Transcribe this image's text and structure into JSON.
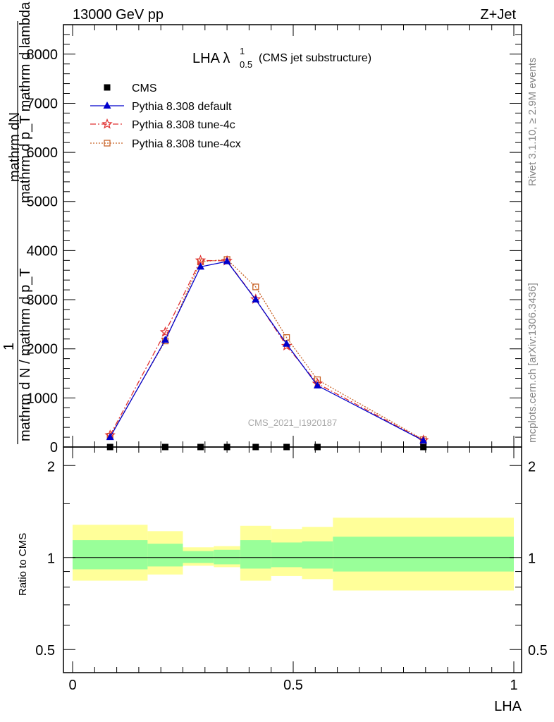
{
  "header": {
    "energy": "13000 GeV pp",
    "process": "Z+Jet"
  },
  "side_text": {
    "rivet": "Rivet 3.1.10, ≥ 2.9M events",
    "mcplots": "mcplots.cern.ch [arXiv:1306.3436]"
  },
  "watermark": "CMS_2021_I1920187",
  "colors": {
    "cms": "#000000",
    "default": "#0000cc",
    "tune4c": "#e03030",
    "tune4cx": "#c86428",
    "band_inner": "#99ff99",
    "band_outer": "#ffff99"
  },
  "chart_data": [
    {
      "type": "line",
      "title_main": "LHA λ",
      "title_sup": "1",
      "title_sub": "0.5",
      "title_suffix": "(CMS jet substructure)",
      "ylabel_top": "mathrm dN",
      "ylabel_top2": "mathrm d p_T mathrm d lambda",
      "ylabel_num": "1",
      "ylabel_den": "mathrm d N / mathrm d p_T",
      "xlim": [
        0,
        1
      ],
      "ylim": [
        0,
        8600
      ],
      "yticks": [
        0,
        1000,
        2000,
        3000,
        4000,
        5000,
        6000,
        7000,
        8000
      ],
      "ytick_labels": [
        "0",
        "1000",
        "2000",
        "3000",
        "4000",
        "5000",
        "6000",
        "7000",
        "8000"
      ],
      "legend_position": "top-left",
      "series": [
        {
          "key": "cms",
          "name": "CMS",
          "marker": "square",
          "x": [
            0.085,
            0.21,
            0.29,
            0.35,
            0.415,
            0.485,
            0.555,
            0.795
          ],
          "y": [
            0,
            0,
            0,
            0,
            0,
            0,
            0,
            0
          ]
        },
        {
          "key": "default",
          "name": "Pythia 8.308 default",
          "marker": "triangle",
          "dash": "",
          "x": [
            0.085,
            0.21,
            0.29,
            0.35,
            0.415,
            0.485,
            0.555,
            0.795
          ],
          "y": [
            200,
            2180,
            3670,
            3780,
            3000,
            2100,
            1250,
            130
          ]
        },
        {
          "key": "tune4c",
          "name": "Pythia 8.308 tune-4c",
          "marker": "star",
          "dash": "8,3,2,3",
          "x": [
            0.085,
            0.21,
            0.29,
            0.35,
            0.415,
            0.485,
            0.555,
            0.795
          ],
          "y": [
            240,
            2340,
            3800,
            3790,
            3010,
            2060,
            1290,
            140
          ]
        },
        {
          "key": "tune4cx",
          "name": "Pythia 8.308 tune-4cx",
          "marker": "open-square",
          "dash": "2,2",
          "x": [
            0.085,
            0.21,
            0.29,
            0.35,
            0.415,
            0.485,
            0.555,
            0.795
          ],
          "y": [
            220,
            2160,
            3770,
            3820,
            3260,
            2230,
            1370,
            150
          ]
        }
      ]
    },
    {
      "type": "area",
      "ylabel": "Ratio to CMS",
      "xlabel": "LHA",
      "xlim": [
        0,
        1
      ],
      "ylim": [
        0.42,
        2.3
      ],
      "ylog": true,
      "yticks": [
        0.5,
        1,
        2
      ],
      "ytick_labels": [
        "0.5",
        "1",
        "2"
      ],
      "xticks": [
        0,
        0.5,
        1
      ],
      "xtick_labels": [
        "0",
        "0.5",
        "1"
      ],
      "bins": [
        {
          "lo": 0.0,
          "hi": 0.17,
          "inner": [
            0.915,
            1.14
          ],
          "outer": [
            0.84,
            1.28
          ]
        },
        {
          "lo": 0.17,
          "hi": 0.25,
          "inner": [
            0.935,
            1.11
          ],
          "outer": [
            0.88,
            1.22
          ]
        },
        {
          "lo": 0.25,
          "hi": 0.32,
          "inner": [
            0.96,
            1.05
          ],
          "outer": [
            0.94,
            1.08
          ]
        },
        {
          "lo": 0.32,
          "hi": 0.38,
          "inner": [
            0.95,
            1.06
          ],
          "outer": [
            0.93,
            1.09
          ]
        },
        {
          "lo": 0.38,
          "hi": 0.45,
          "inner": [
            0.92,
            1.14
          ],
          "outer": [
            0.84,
            1.27
          ]
        },
        {
          "lo": 0.45,
          "hi": 0.52,
          "inner": [
            0.93,
            1.12
          ],
          "outer": [
            0.87,
            1.24
          ]
        },
        {
          "lo": 0.52,
          "hi": 0.59,
          "inner": [
            0.92,
            1.13
          ],
          "outer": [
            0.85,
            1.26
          ]
        },
        {
          "lo": 0.59,
          "hi": 1.0,
          "inner": [
            0.9,
            1.17
          ],
          "outer": [
            0.78,
            1.35
          ]
        }
      ],
      "reference_line": 1
    }
  ]
}
